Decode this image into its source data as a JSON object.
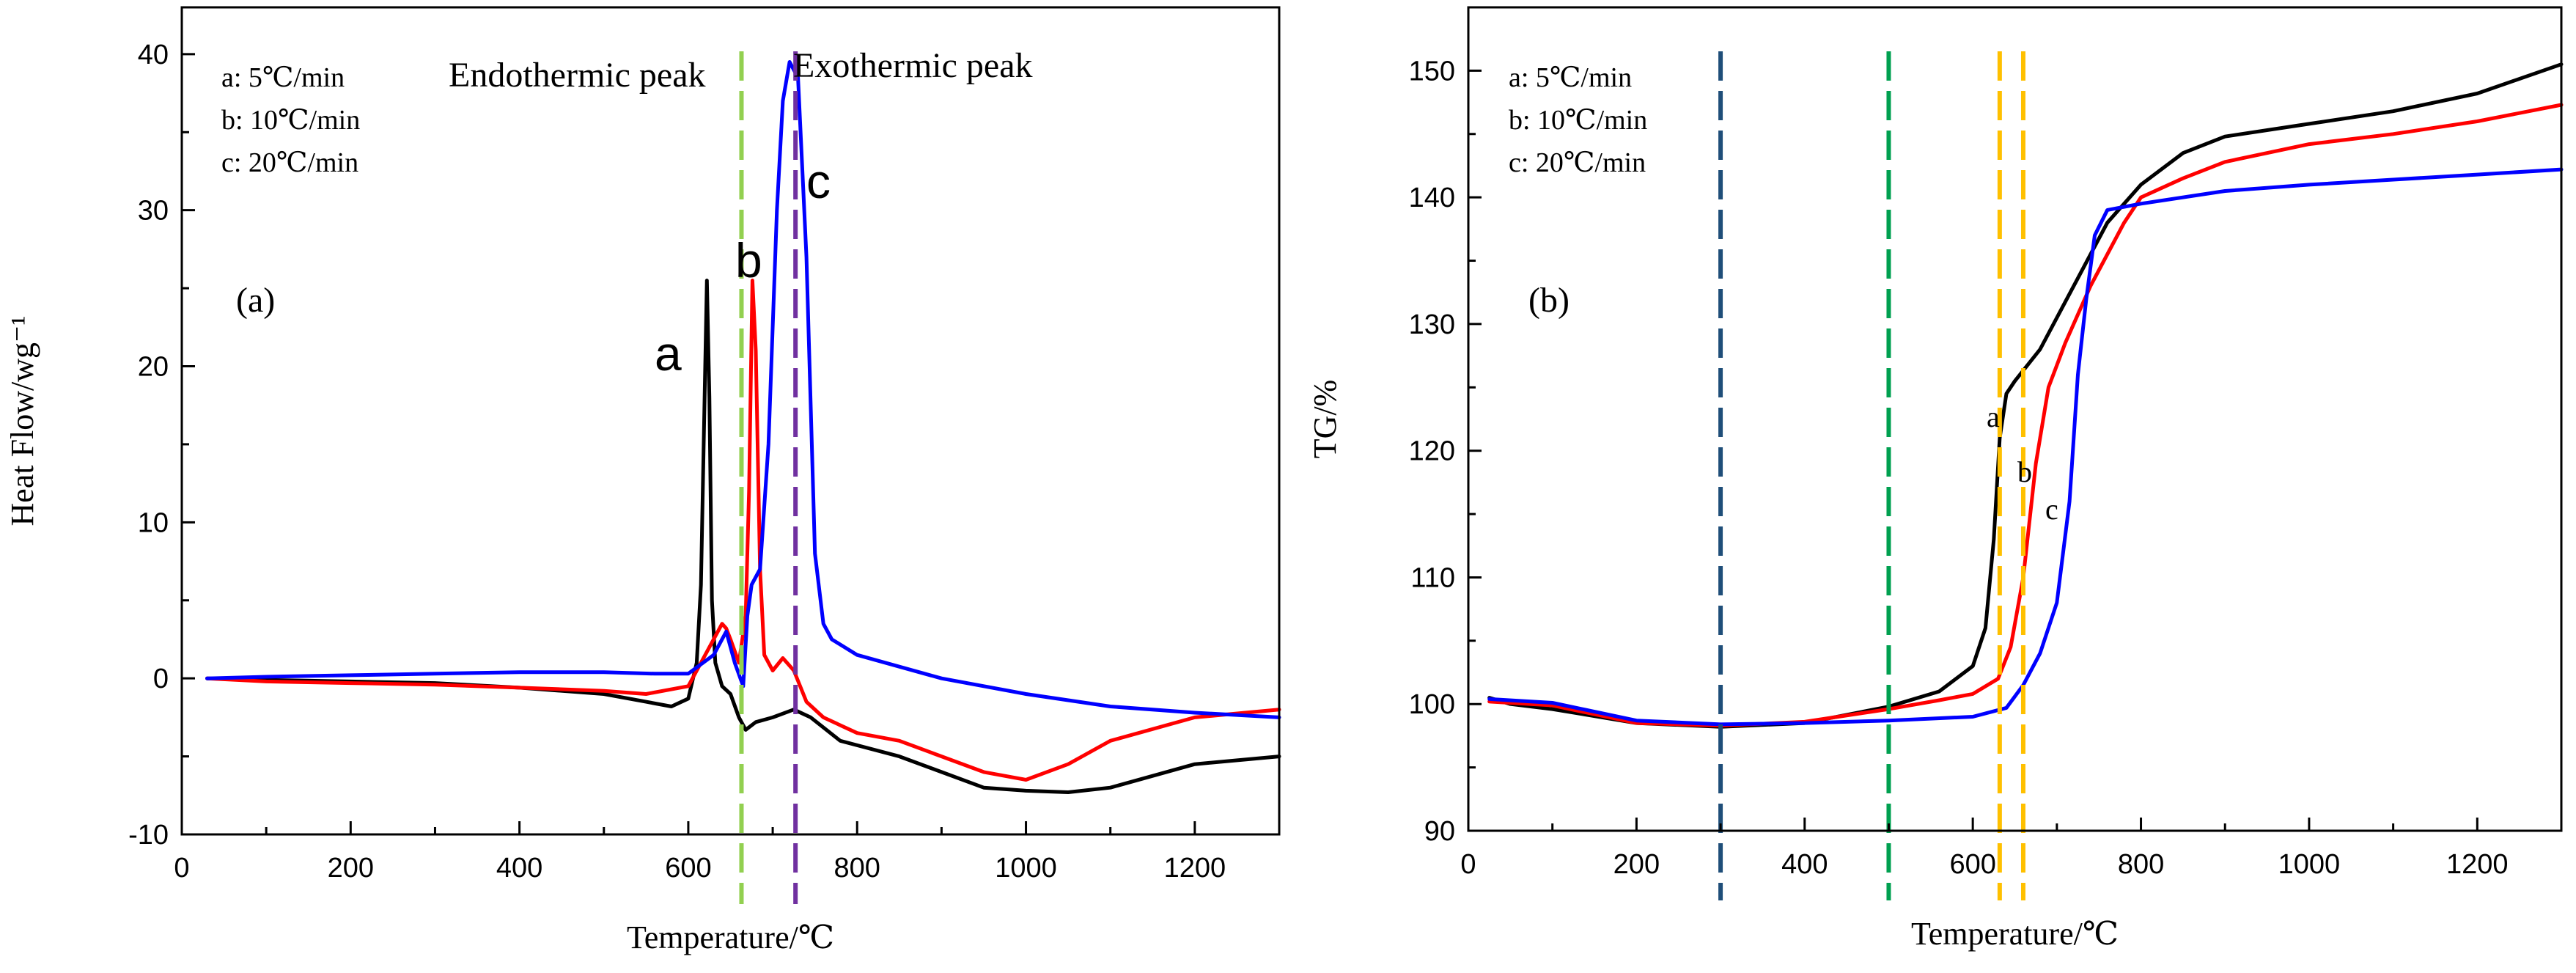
{
  "chart_data": [
    {
      "type": "line",
      "xlabel": "Temperature/℃",
      "ylabel": "Heat Flow/wg⁻¹",
      "panel_label": "(a)",
      "xlim": [
        0,
        1300
      ],
      "ylim": [
        -10,
        43
      ],
      "xticks": [
        0,
        200,
        400,
        600,
        800,
        1000,
        1200
      ],
      "yticks": [
        -10,
        0,
        10,
        20,
        30,
        40
      ],
      "grid": false,
      "legend_position": "top-left",
      "legend": [
        "a: 5℃/min",
        "b: 10℃/min",
        "c: 20℃/min"
      ],
      "annotations": [
        {
          "text": "Endothermic peak"
        },
        {
          "text": "Exothermic peak"
        },
        {
          "text": "a"
        },
        {
          "text": "b"
        },
        {
          "text": "c"
        }
      ],
      "vlines": [
        {
          "x": 663,
          "color": "#92d050"
        },
        {
          "x": 727,
          "color": "#7030a0"
        }
      ],
      "series": [
        {
          "name": "a",
          "color": "#000000",
          "x": [
            30,
            100,
            200,
            300,
            400,
            500,
            550,
            580,
            600,
            610,
            615,
            620,
            622,
            625,
            628,
            632,
            640,
            650,
            660,
            668,
            680,
            700,
            725,
            745,
            780,
            850,
            900,
            950,
            1000,
            1050,
            1100,
            1200,
            1300
          ],
          "y": [
            0,
            -0.1,
            -0.2,
            -0.3,
            -0.6,
            -1.0,
            -1.5,
            -1.8,
            -1.3,
            1.0,
            6.0,
            20.0,
            25.5,
            18.0,
            5.0,
            1.0,
            -0.5,
            -1.0,
            -2.5,
            -3.3,
            -2.8,
            -2.5,
            -2.0,
            -2.5,
            -4.0,
            -5.0,
            -6.0,
            -7.0,
            -7.2,
            -7.3,
            -7.0,
            -5.5,
            -5.0
          ]
        },
        {
          "name": "b",
          "color": "#ff0000",
          "x": [
            30,
            100,
            200,
            300,
            400,
            500,
            550,
            600,
            620,
            640,
            645,
            650,
            660,
            668,
            672,
            676,
            680,
            685,
            690,
            700,
            712,
            725,
            740,
            760,
            800,
            850,
            900,
            950,
            1000,
            1050,
            1100,
            1200,
            1300
          ],
          "y": [
            0,
            -0.2,
            -0.3,
            -0.4,
            -0.6,
            -0.8,
            -1.0,
            -0.5,
            1.5,
            3.5,
            3.2,
            2.5,
            1.0,
            4.0,
            12.0,
            25.5,
            21.0,
            7.0,
            1.5,
            0.5,
            1.3,
            0.5,
            -1.5,
            -2.5,
            -3.5,
            -4.0,
            -5.0,
            -6.0,
            -6.5,
            -5.5,
            -4.0,
            -2.5,
            -2.0
          ]
        },
        {
          "name": "c",
          "color": "#0000ff",
          "x": [
            30,
            100,
            200,
            300,
            400,
            500,
            560,
            600,
            630,
            645,
            655,
            665,
            670,
            675,
            685,
            695,
            705,
            712,
            720,
            730,
            740,
            750,
            760,
            770,
            800,
            900,
            1000,
            1100,
            1200,
            1300
          ],
          "y": [
            0,
            0.1,
            0.2,
            0.3,
            0.4,
            0.4,
            0.3,
            0.3,
            1.5,
            3.0,
            1.0,
            -0.5,
            4.0,
            6.0,
            7.0,
            15.0,
            30.0,
            37.0,
            39.5,
            38.5,
            27.0,
            8.0,
            3.5,
            2.5,
            1.5,
            0.0,
            -1.0,
            -1.8,
            -2.2,
            -2.5
          ]
        }
      ]
    },
    {
      "type": "line",
      "xlabel": "Temperature/℃",
      "ylabel": "TG/%",
      "panel_label": "(b)",
      "xlim": [
        0,
        1300
      ],
      "ylim": [
        90,
        155
      ],
      "xticks": [
        0,
        200,
        400,
        600,
        800,
        1000,
        1200
      ],
      "yticks": [
        90,
        100,
        110,
        120,
        130,
        140,
        150
      ],
      "grid": false,
      "legend_position": "top-left",
      "legend": [
        "a: 5℃/min",
        "b: 10℃/min",
        "c: 20℃/min"
      ],
      "annotations": [
        {
          "text": "a"
        },
        {
          "text": "b"
        },
        {
          "text": "c"
        }
      ],
      "vlines": [
        {
          "x": 300,
          "color": "#1f4e79"
        },
        {
          "x": 500,
          "color": "#00a050"
        },
        {
          "x": 632,
          "color": "#ffc000"
        },
        {
          "x": 660,
          "color": "#ffc000"
        }
      ],
      "series": [
        {
          "name": "a",
          "color": "#000000",
          "x": [
            25,
            50,
            100,
            200,
            300,
            400,
            500,
            560,
            600,
            615,
            625,
            632,
            640,
            650,
            680,
            720,
            760,
            800,
            850,
            900,
            1000,
            1100,
            1200,
            1300
          ],
          "y": [
            100.5,
            100.0,
            99.6,
            98.5,
            98.2,
            98.5,
            99.8,
            101.0,
            103.0,
            106.0,
            113.0,
            121.0,
            124.5,
            125.5,
            128.0,
            133.0,
            138.0,
            141.0,
            143.5,
            144.8,
            145.8,
            146.8,
            148.2,
            150.5
          ]
        },
        {
          "name": "b",
          "color": "#ff0000",
          "x": [
            25,
            100,
            200,
            300,
            400,
            500,
            560,
            600,
            630,
            645,
            660,
            675,
            690,
            710,
            740,
            780,
            800,
            850,
            900,
            1000,
            1100,
            1200,
            1300
          ],
          "y": [
            100.2,
            99.9,
            98.5,
            98.3,
            98.6,
            99.6,
            100.3,
            100.8,
            102.0,
            104.5,
            110.0,
            119.0,
            125.0,
            128.5,
            133.0,
            138.0,
            140.0,
            141.5,
            142.8,
            144.2,
            145.0,
            146.0,
            147.3
          ]
        },
        {
          "name": "c",
          "color": "#0000ff",
          "x": [
            25,
            100,
            200,
            300,
            400,
            500,
            600,
            640,
            660,
            680,
            700,
            715,
            725,
            735,
            745,
            760,
            800,
            900,
            1000,
            1100,
            1200,
            1300
          ],
          "y": [
            100.4,
            100.1,
            98.7,
            98.4,
            98.5,
            98.7,
            99.0,
            99.7,
            101.5,
            104.0,
            108.0,
            116.0,
            126.0,
            132.0,
            137.0,
            139.0,
            139.5,
            140.5,
            141.0,
            141.4,
            141.8,
            142.2
          ]
        }
      ]
    }
  ]
}
